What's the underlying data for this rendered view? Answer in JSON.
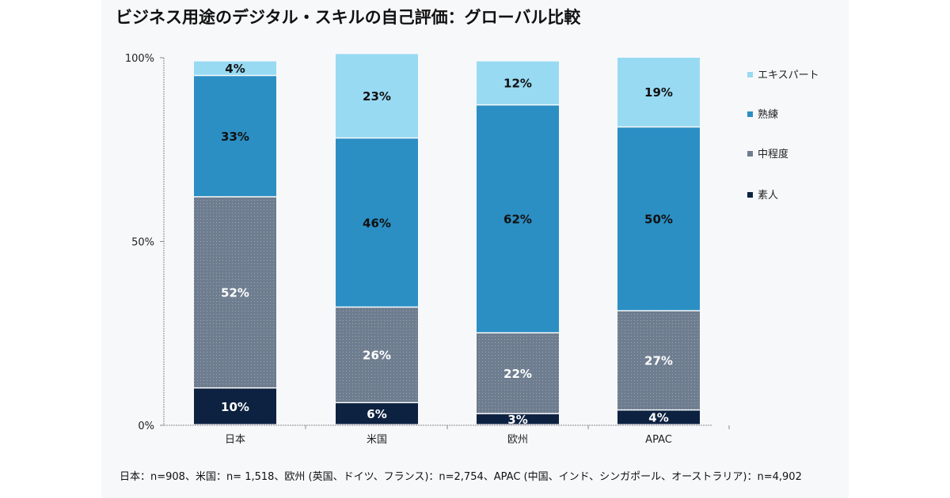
{
  "title": "ビジネス用途のデジタル・スキルの自己評価：グローバル比較",
  "footnote": "日本：n=908、米国：n= 1,518、欧州 (英国、ドイツ、フランス)：n=2,754、APAC (中国、インド、シンガポール、オーストラリア)：n=4,902",
  "chart_data": {
    "type": "bar",
    "stacked": true,
    "categories": [
      "日本",
      "米国",
      "欧州",
      "APAC"
    ],
    "y_ticks": [
      "0%",
      "50%",
      "100%"
    ],
    "ylim": [
      0,
      100
    ],
    "legend_position": "right",
    "series": [
      {
        "name": "素人",
        "values": [
          10,
          6,
          3,
          4
        ],
        "labels": [
          "10%",
          "6%",
          "3%",
          "4%"
        ],
        "color": "#0d2240",
        "label_color": "#ffffff"
      },
      {
        "name": "中程度",
        "values": [
          52,
          26,
          22,
          27
        ],
        "labels": [
          "52%",
          "26%",
          "22%",
          "27%"
        ],
        "color": "#6e7d8f",
        "label_color": "#ffffff"
      },
      {
        "name": "熟練",
        "values": [
          33,
          46,
          62,
          50
        ],
        "labels": [
          "33%",
          "46%",
          "62%",
          "50%"
        ],
        "color": "#2b8fc4",
        "label_color": "#111111"
      },
      {
        "name": "エキスパート",
        "values": [
          4,
          23,
          12,
          19
        ],
        "labels": [
          "4%",
          "23%",
          "12%",
          "19%"
        ],
        "color": "#99daf3",
        "label_color": "#111111"
      }
    ],
    "legend_order": [
      "エキスパート",
      "熟練",
      "中程度",
      "素人"
    ]
  }
}
